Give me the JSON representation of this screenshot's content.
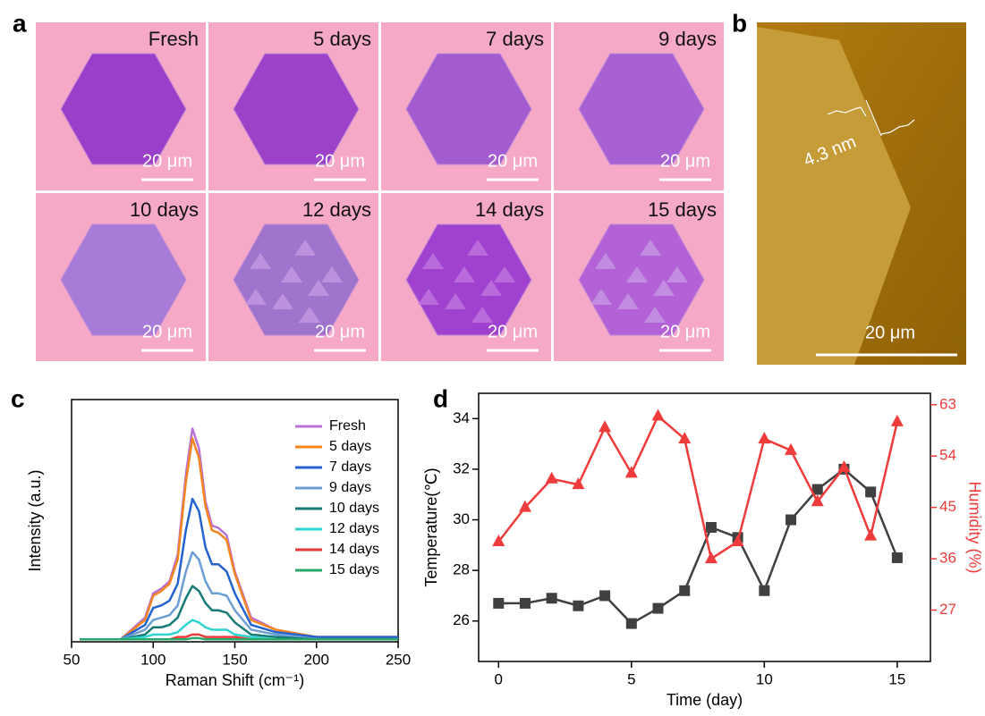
{
  "panel_a": {
    "label": "a",
    "images": [
      {
        "caption": "Fresh",
        "scale_bar": "20 μm"
      },
      {
        "caption": "5 days",
        "scale_bar": "20 μm"
      },
      {
        "caption": "7 days",
        "scale_bar": "20 μm"
      },
      {
        "caption": "9 days",
        "scale_bar": "20 μm"
      },
      {
        "caption": "10 days",
        "scale_bar": "20 μm"
      },
      {
        "caption": "12 days",
        "scale_bar": "20 μm"
      },
      {
        "caption": "14 days",
        "scale_bar": "20 μm"
      },
      {
        "caption": "15 days",
        "scale_bar": "20 μm"
      }
    ]
  },
  "panel_b": {
    "label": "b",
    "thickness": "4.3 nm",
    "scale_bar": "20 μm"
  },
  "chart_data": [
    {
      "type": "line",
      "panel_label": "c",
      "xlabel": "Raman Shift (cm⁻¹)",
      "ylabel": "Intensity (a.u.)",
      "x": [
        55,
        80,
        95,
        100,
        105,
        110,
        115,
        120,
        124,
        128,
        132,
        136,
        140,
        145,
        150,
        160,
        175,
        200,
        250
      ],
      "xlim": [
        50,
        250
      ],
      "xticks": [
        50,
        100,
        150,
        200,
        250
      ],
      "ylim": [
        0,
        100
      ],
      "legend": "upper right",
      "series": [
        {
          "name": "Fresh",
          "color": "#b872d8",
          "values": [
            1,
            1,
            10,
            20,
            22,
            25,
            36,
            69,
            88,
            80,
            58,
            48,
            47,
            44,
            29,
            10,
            5,
            2,
            2
          ]
        },
        {
          "name": "5 days",
          "color": "#f5841f",
          "values": [
            1,
            1,
            9,
            19,
            21,
            24,
            34,
            66,
            84,
            76,
            56,
            46,
            45,
            42,
            28,
            9,
            5,
            2,
            2
          ]
        },
        {
          "name": "7 days",
          "color": "#2463cf",
          "values": [
            1,
            1,
            7,
            14,
            15,
            17,
            24,
            46,
            59,
            54,
            39,
            32,
            32,
            29,
            20,
            7,
            4,
            2,
            2
          ]
        },
        {
          "name": "9 days",
          "color": "#6b9fd4",
          "values": [
            1,
            1,
            5,
            9,
            10,
            11,
            15,
            29,
            37,
            34,
            25,
            20,
            20,
            19,
            13,
            5,
            3,
            1,
            1
          ]
        },
        {
          "name": "10 days",
          "color": "#167a76",
          "values": [
            1,
            1,
            3,
            6,
            6,
            7,
            10,
            18,
            23,
            21,
            16,
            13,
            13,
            12,
            8,
            3,
            2,
            1,
            1
          ]
        },
        {
          "name": "12 days",
          "color": "#2fd3d0",
          "values": [
            1,
            1,
            2,
            3,
            3,
            3,
            4,
            7,
            9,
            8,
            6,
            5,
            5,
            5,
            3,
            2,
            1,
            1,
            1
          ]
        },
        {
          "name": "14 days",
          "color": "#e83a3a",
          "values": [
            1,
            1,
            1,
            1,
            1,
            1,
            2,
            2,
            3,
            3,
            2,
            2,
            2,
            2,
            2,
            1,
            1,
            1,
            1
          ]
        },
        {
          "name": "15 days",
          "color": "#2aa86a",
          "values": [
            1,
            1,
            1,
            1,
            1,
            1,
            1,
            1,
            1.5,
            1.5,
            1,
            1,
            1,
            1,
            1,
            1,
            1,
            1,
            1
          ]
        }
      ]
    },
    {
      "type": "line",
      "panel_label": "d",
      "xlabel": "Time (day)",
      "ylabel": "Temperature(℃)",
      "y2label": "Humidity (%)",
      "x": [
        0,
        1,
        2,
        3,
        4,
        5,
        6,
        7,
        8,
        9,
        10,
        11,
        12,
        13,
        14,
        15
      ],
      "xlim": [
        -0.75,
        16.25
      ],
      "xticks": [
        0,
        5,
        10,
        15
      ],
      "ylim": [
        24.4,
        35
      ],
      "yticks": [
        26,
        28,
        30,
        32,
        34
      ],
      "y2lim": [
        18,
        65
      ],
      "y2ticks": [
        27,
        36,
        45,
        54,
        63
      ],
      "series": [
        {
          "color": "#404040",
          "marker": "square",
          "values": [
            26.7,
            26.7,
            26.9,
            26.6,
            27.0,
            25.9,
            26.5,
            27.2,
            29.7,
            29.3,
            27.2,
            30.0,
            31.2,
            32.0,
            31.1,
            28.5
          ]
        },
        {
          "color": "#ee3b3b",
          "marker": "triangle",
          "axis": "y2",
          "values": [
            39,
            45,
            50,
            49,
            59,
            51,
            61,
            57,
            36,
            39,
            57,
            55,
            46,
            52,
            40,
            60
          ]
        }
      ]
    }
  ]
}
